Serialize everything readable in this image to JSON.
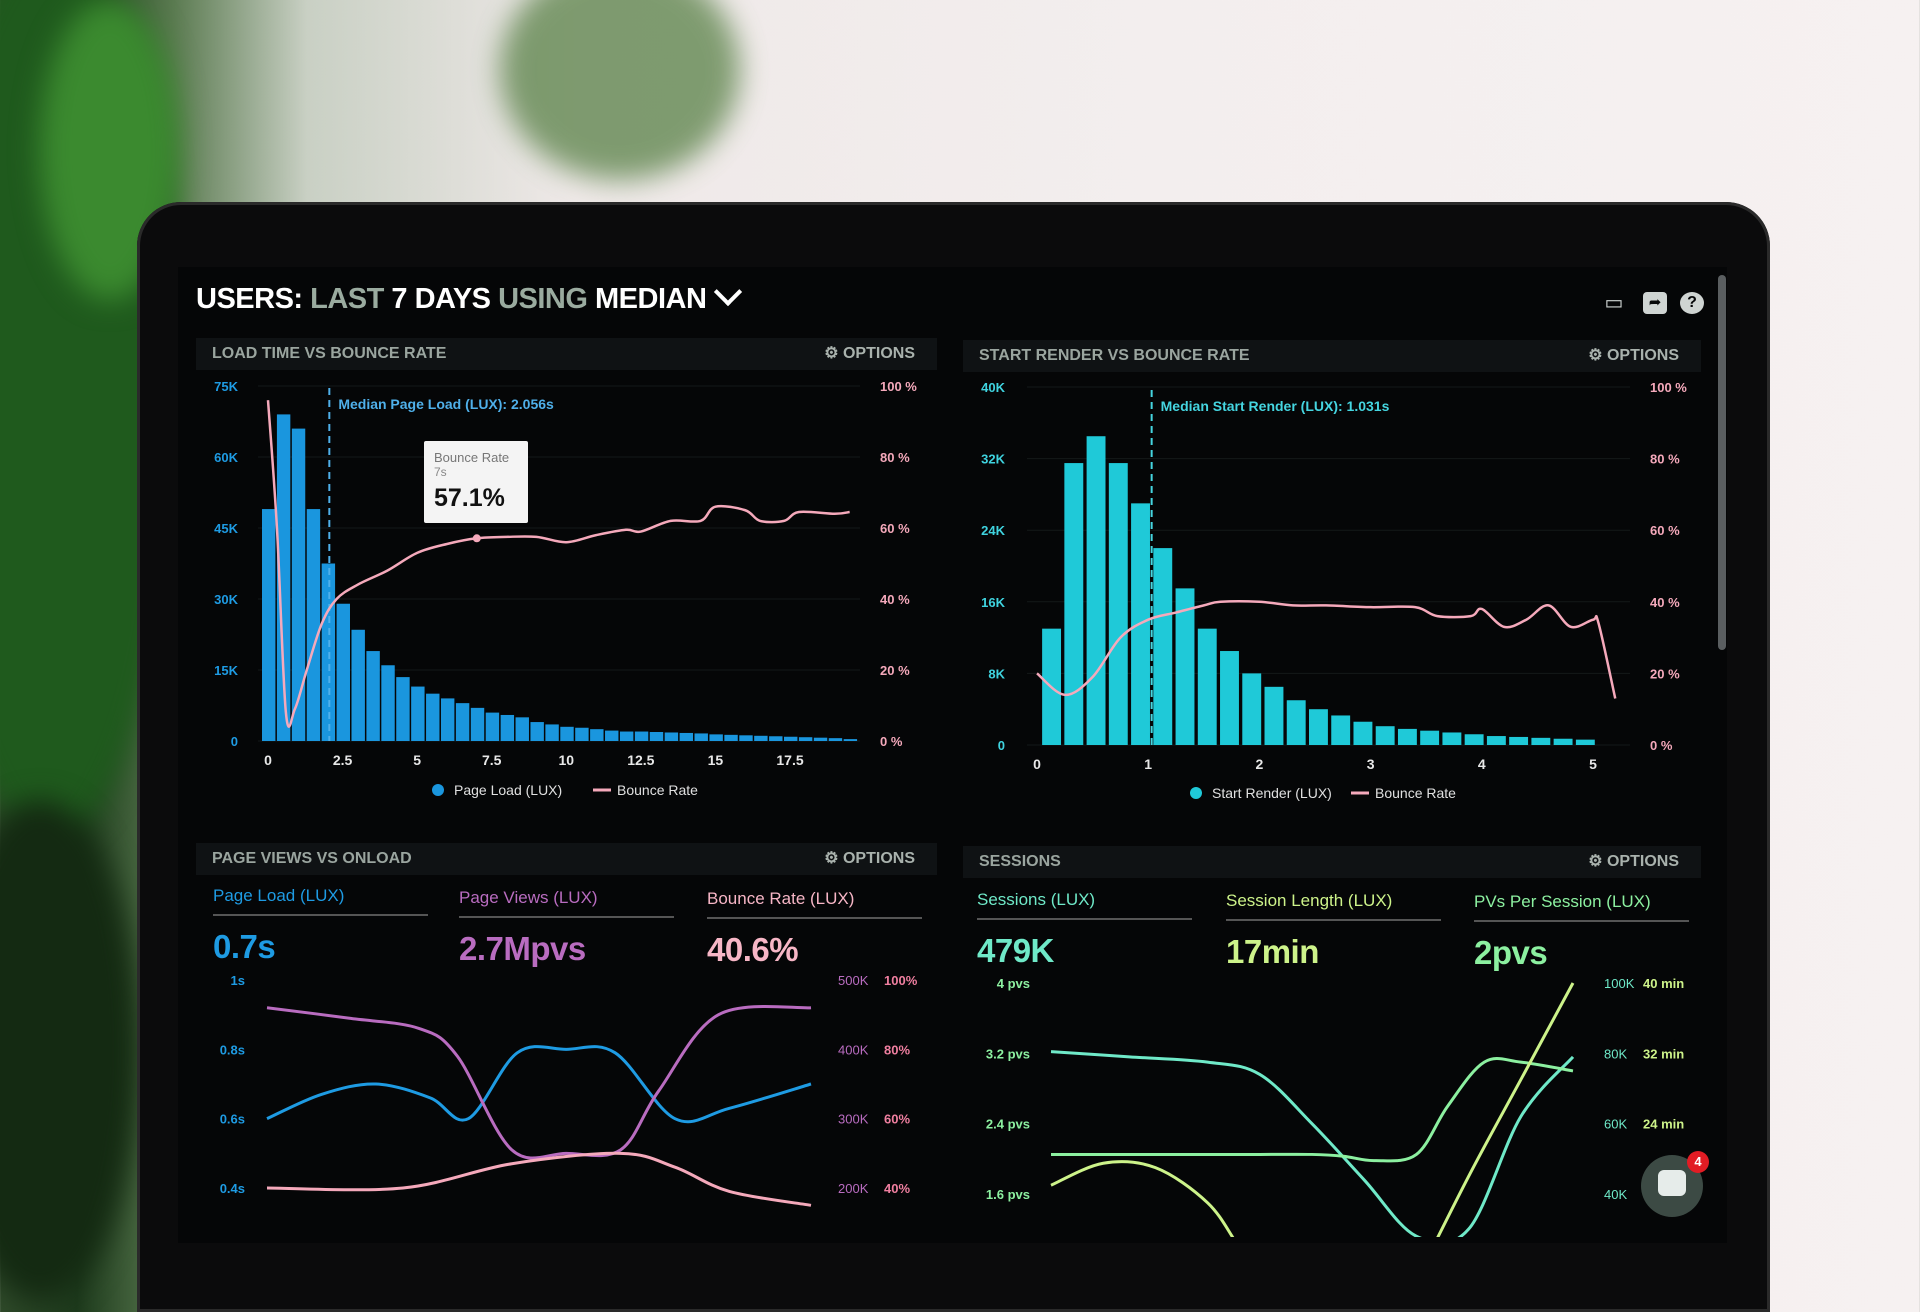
{
  "header": {
    "title_parts": [
      "USERS:",
      "LAST",
      "7 DAYS",
      "USING",
      "MEDIAN"
    ],
    "icons": [
      "monitor-icon",
      "share-icon",
      "help-icon"
    ]
  },
  "panels": [
    {
      "title": "LOAD TIME VS BOUNCE RATE",
      "options": "OPTIONS"
    },
    {
      "title": "START RENDER VS BOUNCE RATE",
      "options": "OPTIONS"
    },
    {
      "title": "PAGE VIEWS VS ONLOAD",
      "options": "OPTIONS",
      "metrics": [
        {
          "label": "Page Load (LUX)",
          "value": "0.7s",
          "color": "#1e9be3"
        },
        {
          "label": "Page Views (LUX)",
          "value": "2.7Mpvs",
          "color": "#b96cc0"
        },
        {
          "label": "Bounce Rate (LUX)",
          "value": "40.6%",
          "color": "#f7b6c6"
        }
      ]
    },
    {
      "title": "SESSIONS",
      "options": "OPTIONS",
      "metrics": [
        {
          "label": "Sessions (LUX)",
          "value": "479K",
          "color": "#6fe9c8"
        },
        {
          "label": "Session Length (LUX)",
          "value": "17min",
          "color": "#cdf38a"
        },
        {
          "label": "PVs Per Session (LUX)",
          "value": "2pvs",
          "color": "#8cf0a0"
        }
      ]
    }
  ],
  "chat": {
    "badge": "4"
  },
  "chart_data": [
    {
      "type": "bar+line",
      "x_ticks": [
        "0",
        "2.5",
        "5",
        "7.5",
        "10",
        "12.5",
        "15",
        "17.5"
      ],
      "x_tick_values": [
        0,
        2.5,
        5,
        7.5,
        10,
        12.5,
        15,
        17.5
      ],
      "y_ticks": [
        "0",
        "15K",
        "30K",
        "45K",
        "60K",
        "75K"
      ],
      "y2_ticks": [
        "0 %",
        "20 %",
        "40 %",
        "60 %",
        "80 %",
        "100 %"
      ],
      "ylim": [
        0,
        75000
      ],
      "y2lim": [
        0,
        100
      ],
      "bars": {
        "name": "Page Load (LUX)",
        "color": "#1a96de",
        "x": [
          0,
          0.5,
          1,
          1.5,
          2,
          2.5,
          3,
          3.5,
          4,
          4.5,
          5,
          5.5,
          6,
          6.5,
          7,
          7.5,
          8,
          8.5,
          9,
          9.5,
          10,
          10.5,
          11,
          11.5,
          12,
          12.5,
          13,
          13.5,
          14,
          14.5,
          15,
          15.5,
          16,
          16.5,
          17,
          17.5,
          18,
          18.5,
          19,
          19.5
        ],
        "values": [
          49000,
          69000,
          66000,
          49000,
          37500,
          29000,
          23500,
          19000,
          16000,
          13500,
          11500,
          10000,
          9000,
          8000,
          7000,
          6000,
          5500,
          5000,
          4000,
          3500,
          3000,
          2800,
          2500,
          2200,
          2000,
          2000,
          1900,
          1800,
          1700,
          1600,
          1400,
          1300,
          1200,
          1100,
          1000,
          900,
          800,
          700,
          600,
          400
        ]
      },
      "line": {
        "name": "Bounce Rate",
        "color": "#f5a9bb",
        "x": [
          0,
          0.3,
          0.6,
          0.9,
          1.3,
          1.8,
          2.3,
          3,
          4,
          5,
          6,
          7,
          8,
          9,
          10,
          11,
          12,
          12.5,
          13.5,
          14.5,
          15,
          16,
          16.5,
          17.3,
          17.8,
          19,
          19.5
        ],
        "y": [
          96,
          60,
          8,
          9,
          20,
          33,
          40,
          44,
          48,
          53,
          55.5,
          57.1,
          57.5,
          57.5,
          56,
          58,
          59.5,
          59,
          62,
          62,
          66,
          65,
          62,
          62,
          64.5,
          64,
          64.5
        ]
      },
      "median": {
        "x": 2.056,
        "label": "Median Page Load (LUX): 2.056s"
      },
      "tooltip": {
        "title": "Bounce Rate",
        "x_label": "7s",
        "value": "57.1%"
      },
      "legend": [
        "Page Load (LUX)",
        "Bounce Rate"
      ]
    },
    {
      "type": "bar+line",
      "x_ticks": [
        "0",
        "1",
        "2",
        "3",
        "4",
        "5"
      ],
      "x_tick_values": [
        0,
        1,
        2,
        3,
        4,
        5
      ],
      "y_ticks": [
        "0",
        "8K",
        "16K",
        "24K",
        "32K",
        "40K"
      ],
      "y2_ticks": [
        "0 %",
        "20 %",
        "40 %",
        "60 %",
        "80 %",
        "100 %"
      ],
      "ylim": [
        0,
        40000
      ],
      "y2lim": [
        0,
        100
      ],
      "bars": {
        "name": "Start Render (LUX)",
        "color": "#1fc9d8",
        "x": [
          0.1,
          0.3,
          0.5,
          0.7,
          0.9,
          1.1,
          1.3,
          1.5,
          1.7,
          1.9,
          2.1,
          2.3,
          2.5,
          2.7,
          2.9,
          3.1,
          3.3,
          3.5,
          3.7,
          3.9,
          4.1,
          4.3,
          4.5,
          4.7,
          4.9
        ],
        "values": [
          13000,
          31500,
          34500,
          31500,
          27000,
          22000,
          17500,
          13000,
          10500,
          8000,
          6500,
          5000,
          4000,
          3300,
          2600,
          2100,
          1800,
          1600,
          1400,
          1200,
          1000,
          900,
          800,
          700,
          600
        ]
      },
      "line": {
        "name": "Bounce Rate",
        "color": "#f5a9bb",
        "x": [
          0,
          0.25,
          0.5,
          0.75,
          1,
          1.25,
          1.5,
          1.65,
          2,
          2.3,
          2.6,
          3,
          3.4,
          3.6,
          3.9,
          4,
          4.2,
          4.4,
          4.6,
          4.8,
          5,
          5.05,
          5.2
        ],
        "y": [
          20,
          14,
          19,
          30,
          35,
          37,
          39,
          40,
          40,
          39,
          39,
          38.5,
          38.5,
          36,
          36,
          38,
          33,
          35,
          39,
          33,
          35,
          34,
          13
        ]
      },
      "median": {
        "x": 1.031,
        "label": "Median Start Render (LUX): 1.031s"
      },
      "legend": [
        "Start Render (LUX)",
        "Bounce Rate"
      ]
    },
    {
      "type": "line",
      "y_ticks": [
        "0.4s",
        "0.6s",
        "0.8s",
        "1s"
      ],
      "y2_ticks": [
        "200K",
        "300K",
        "400K",
        "500K"
      ],
      "y3_ticks": [
        "40%",
        "60%",
        "80%",
        "100%"
      ],
      "ylim": [
        0.4,
        1.0
      ],
      "y2lim": [
        200000,
        500000
      ],
      "y3lim": [
        40,
        100
      ],
      "series": [
        {
          "name": "Page Load (LUX)",
          "axis": "y",
          "color": "#1e9be3",
          "x": [
            0,
            1,
            2,
            3,
            3.7,
            4.6,
            5.5,
            6.4,
            7.5,
            8.5,
            10
          ],
          "y": [
            0.6,
            0.67,
            0.7,
            0.66,
            0.6,
            0.79,
            0.8,
            0.79,
            0.6,
            0.63,
            0.7
          ]
        },
        {
          "name": "Page Views (LUX)",
          "axis": "y2",
          "color": "#b96cc0",
          "x": [
            0,
            1.5,
            2.8,
            3.5,
            4.5,
            5.5,
            6.5,
            7.2,
            8.3,
            10
          ],
          "y": [
            460000,
            445000,
            430000,
            390000,
            255000,
            250000,
            255000,
            340000,
            450000,
            460000
          ]
        },
        {
          "name": "Bounce Rate (LUX)",
          "axis": "y3",
          "color": "#f5a9bb",
          "x": [
            0,
            2.5,
            4.5,
            6.5,
            7.5,
            8.5,
            10
          ],
          "y": [
            40,
            40,
            47,
            50,
            46,
            39,
            35
          ]
        }
      ]
    },
    {
      "type": "line",
      "y_ticks": [
        "1.6 pvs",
        "2.4 pvs",
        "3.2 pvs",
        "4 pvs"
      ],
      "y2_ticks": [
        "40K",
        "60K",
        "80K",
        "100K"
      ],
      "y3_ticks": [
        "24 min",
        "32 min",
        "40 min"
      ],
      "ylim": [
        1.6,
        4.0
      ],
      "y2lim": [
        40000,
        100000
      ],
      "y3lim": [
        16,
        40
      ],
      "series": [
        {
          "name": "Sessions (LUX)",
          "axis": "y2",
          "color": "#6fe9c8",
          "x": [
            0,
            1.5,
            3,
            4,
            5,
            6,
            7,
            8,
            9,
            10
          ],
          "y": [
            80500,
            79000,
            77500,
            74000,
            60000,
            44000,
            28000,
            30000,
            62000,
            79000
          ]
        },
        {
          "name": "PVs Per Session (LUX)",
          "axis": "y",
          "color": "#8cf0a0",
          "x": [
            0,
            2,
            4,
            5,
            5.6,
            6.2,
            7,
            7.6,
            8.3,
            9,
            10
          ],
          "y": [
            2.05,
            2.05,
            2.05,
            2.05,
            2.03,
            1.98,
            2.05,
            2.6,
            3.1,
            3.1,
            3.0
          ]
        },
        {
          "name": "Session Length (LUX)",
          "axis": "y3",
          "color": "#cdf38a",
          "x": [
            0,
            1,
            2,
            3,
            3.6,
            4.2
          ],
          "y": [
            17,
            19.5,
            19,
            15,
            10,
            5
          ]
        },
        {
          "name": "Session Length (LUX)",
          "axis": "y3",
          "color": "#cdf38a",
          "x": [
            6.9,
            8,
            9,
            10
          ],
          "y": [
            5,
            18,
            29,
            40
          ]
        }
      ]
    }
  ]
}
